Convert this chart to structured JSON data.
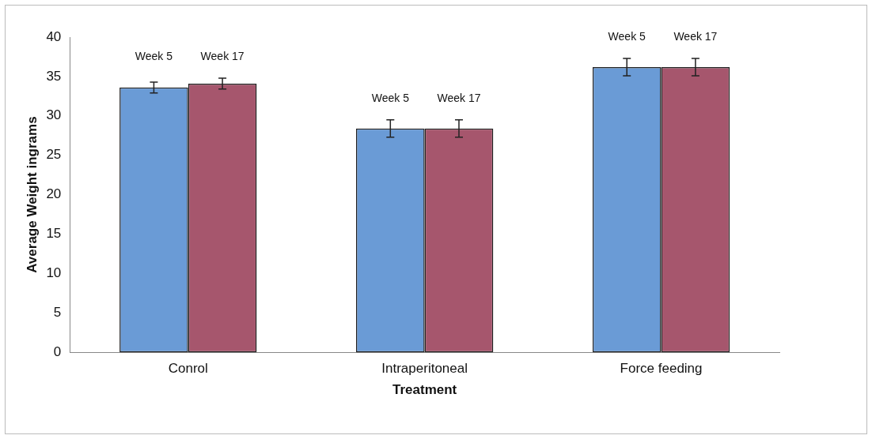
{
  "chart_data": {
    "type": "bar",
    "xlabel": "Treatment",
    "ylabel": "Average Weight ingrams",
    "categories": [
      "Conrol",
      "Intraperitoneal",
      "Force feeding"
    ],
    "series": [
      {
        "name": "Week 5",
        "color": "#6a9bd6",
        "values": [
          33.6,
          28.4,
          36.2
        ],
        "errors": [
          0.7,
          1.1,
          1.1
        ]
      },
      {
        "name": "Week 17",
        "color": "#a6566d",
        "values": [
          34.1,
          28.4,
          36.2
        ],
        "errors": [
          0.7,
          1.1,
          1.1
        ]
      }
    ],
    "ylim": [
      0,
      40
    ],
    "yticks": [
      0,
      5,
      10,
      15,
      20,
      25,
      30,
      35,
      40
    ],
    "grid": false,
    "legend": false
  }
}
